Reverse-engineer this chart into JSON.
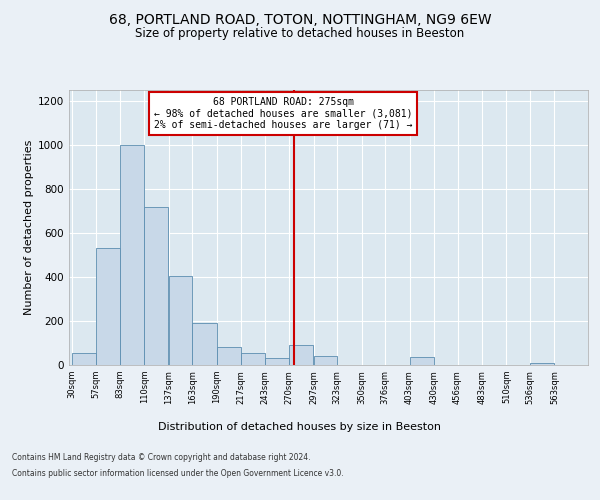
{
  "title1": "68, PORTLAND ROAD, TOTON, NOTTINGHAM, NG9 6EW",
  "title2": "Size of property relative to detached houses in Beeston",
  "xlabel": "Distribution of detached houses by size in Beeston",
  "ylabel": "Number of detached properties",
  "footer1": "Contains HM Land Registry data © Crown copyright and database right 2024.",
  "footer2": "Contains public sector information licensed under the Open Government Licence v3.0.",
  "annotation_title": "68 PORTLAND ROAD: 275sqm",
  "annotation_line1": "← 98% of detached houses are smaller (3,081)",
  "annotation_line2": "2% of semi-detached houses are larger (71) →",
  "property_size": 275,
  "bar_left_edges": [
    30,
    57,
    83,
    110,
    137,
    163,
    190,
    217,
    243,
    270,
    297,
    323,
    350,
    376,
    403,
    430,
    456,
    483,
    510,
    536
  ],
  "bar_widths": [
    27,
    26,
    27,
    27,
    26,
    27,
    27,
    26,
    27,
    27,
    26,
    27,
    26,
    27,
    27,
    26,
    27,
    27,
    26,
    27
  ],
  "bar_heights": [
    55,
    530,
    1000,
    720,
    405,
    190,
    80,
    55,
    30,
    90,
    40,
    0,
    0,
    0,
    35,
    0,
    0,
    0,
    0,
    10
  ],
  "bar_color": "#c8d8e8",
  "bar_edge_color": "#5b8db0",
  "vline_x": 275,
  "vline_color": "#cc0000",
  "annotation_box_color": "#cc0000",
  "background_color": "#dce8f0",
  "fig_background_color": "#eaf0f6",
  "ylim": [
    0,
    1250
  ],
  "xlim": [
    27,
    600
  ],
  "yticks": [
    0,
    200,
    400,
    600,
    800,
    1000,
    1200
  ],
  "grid_color": "#ffffff",
  "title1_fontsize": 10,
  "title2_fontsize": 8.5,
  "xlabel_fontsize": 8,
  "ylabel_fontsize": 8,
  "tick_labels": [
    "30sqm",
    "57sqm",
    "83sqm",
    "110sqm",
    "137sqm",
    "163sqm",
    "190sqm",
    "217sqm",
    "243sqm",
    "270sqm",
    "297sqm",
    "323sqm",
    "350sqm",
    "376sqm",
    "403sqm",
    "430sqm",
    "456sqm",
    "483sqm",
    "510sqm",
    "536sqm",
    "563sqm"
  ]
}
